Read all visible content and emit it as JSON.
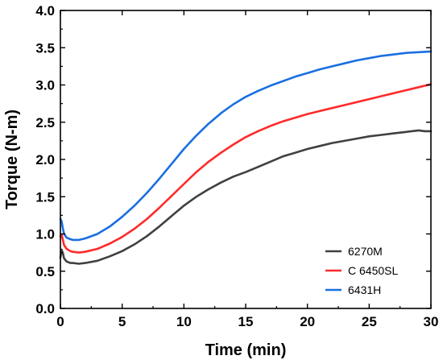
{
  "chart_data": {
    "type": "line",
    "title": "",
    "xlabel": "Time (min)",
    "ylabel": "Torque (N-m)",
    "xlim": [
      0,
      30
    ],
    "ylim": [
      0,
      4.0
    ],
    "xticks": [
      "0",
      "5",
      "10",
      "15",
      "20",
      "25",
      "30"
    ],
    "yticks": [
      "0.0",
      "0.5",
      "1.0",
      "1.5",
      "2.0",
      "2.5",
      "3.0",
      "3.5",
      "4.0"
    ],
    "grid": false,
    "legend_position": "bottom-right",
    "series": [
      {
        "name": "6270M",
        "color": "#404040",
        "x": [
          0.0,
          0.1,
          0.2,
          0.3,
          0.5,
          0.8,
          1.0,
          1.5,
          2.0,
          3.0,
          4.0,
          5.0,
          6.0,
          7.0,
          8.0,
          9.0,
          10.0,
          11.0,
          12.0,
          13.0,
          14.0,
          15.0,
          16.0,
          17.0,
          18.0,
          19.0,
          20.0,
          21.0,
          22.0,
          23.0,
          24.0,
          25.0,
          26.0,
          27.0,
          28.0,
          29.0,
          29.5,
          30.0
        ],
        "y": [
          0.68,
          0.79,
          0.74,
          0.67,
          0.63,
          0.61,
          0.61,
          0.6,
          0.61,
          0.64,
          0.7,
          0.77,
          0.86,
          0.97,
          1.1,
          1.24,
          1.38,
          1.5,
          1.6,
          1.69,
          1.77,
          1.83,
          1.9,
          1.97,
          2.04,
          2.09,
          2.14,
          2.18,
          2.22,
          2.25,
          2.28,
          2.31,
          2.33,
          2.35,
          2.37,
          2.39,
          2.38,
          2.38
        ]
      },
      {
        "name": "C 6450SL",
        "color": "#ff2a2a",
        "x": [
          0.0,
          0.1,
          0.2,
          0.3,
          0.5,
          0.8,
          1.0,
          1.5,
          2.0,
          3.0,
          4.0,
          5.0,
          6.0,
          7.0,
          8.0,
          9.0,
          10.0,
          11.0,
          12.0,
          13.0,
          14.0,
          15.0,
          16.0,
          17.0,
          18.0,
          19.0,
          20.0,
          21.0,
          22.0,
          23.0,
          24.0,
          25.0,
          26.0,
          27.0,
          28.0,
          29.0,
          30.0
        ],
        "y": [
          0.97,
          0.99,
          0.92,
          0.85,
          0.8,
          0.77,
          0.76,
          0.75,
          0.76,
          0.8,
          0.87,
          0.96,
          1.07,
          1.2,
          1.35,
          1.51,
          1.67,
          1.83,
          1.97,
          2.09,
          2.2,
          2.3,
          2.38,
          2.45,
          2.51,
          2.56,
          2.61,
          2.65,
          2.69,
          2.73,
          2.77,
          2.81,
          2.85,
          2.89,
          2.93,
          2.97,
          3.01
        ]
      },
      {
        "name": "6431H",
        "color": "#1a6fe0",
        "x": [
          0.0,
          0.1,
          0.2,
          0.3,
          0.5,
          0.8,
          1.0,
          1.5,
          2.0,
          3.0,
          4.0,
          5.0,
          6.0,
          7.0,
          8.0,
          9.0,
          10.0,
          11.0,
          12.0,
          13.0,
          14.0,
          15.0,
          16.0,
          17.0,
          18.0,
          19.0,
          20.0,
          21.0,
          22.0,
          23.0,
          24.0,
          25.0,
          26.0,
          27.0,
          28.0,
          29.0,
          30.0
        ],
        "y": [
          1.2,
          1.17,
          1.07,
          1.0,
          0.95,
          0.93,
          0.92,
          0.92,
          0.94,
          1.0,
          1.1,
          1.23,
          1.38,
          1.55,
          1.74,
          1.94,
          2.14,
          2.32,
          2.48,
          2.62,
          2.74,
          2.84,
          2.92,
          2.99,
          3.05,
          3.11,
          3.16,
          3.21,
          3.25,
          3.29,
          3.33,
          3.36,
          3.39,
          3.41,
          3.43,
          3.44,
          3.45
        ]
      }
    ]
  }
}
